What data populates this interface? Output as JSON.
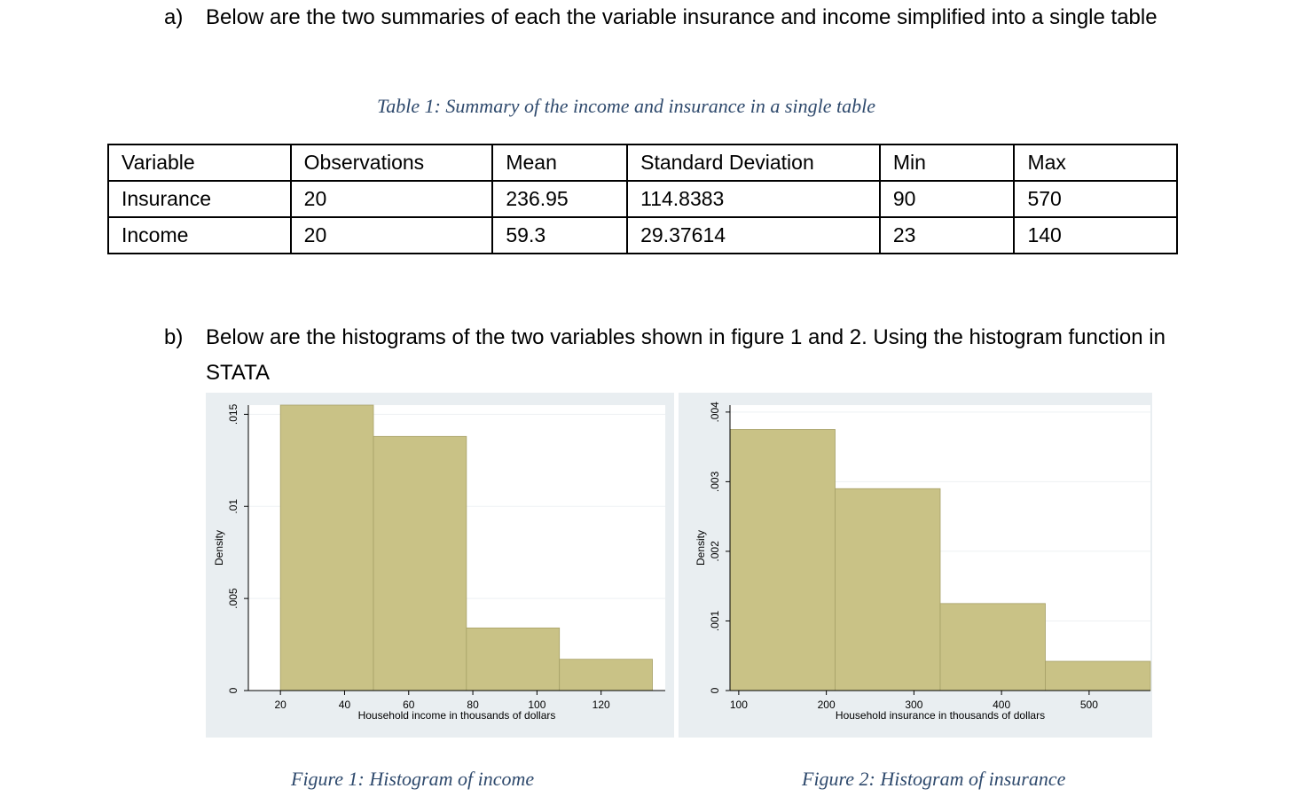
{
  "section_a": {
    "label": "a)",
    "text": "Below are the two summaries of each the variable insurance and income simplified into a single table"
  },
  "table_caption": "Table 1: Summary of the income and insurance in a single table",
  "summary_table": {
    "headers": [
      "Variable",
      "Observations",
      "Mean",
      "Standard Deviation",
      "Min",
      "Max"
    ],
    "rows": [
      [
        "Insurance",
        "20",
        "236.95",
        "114.8383",
        "90",
        "570"
      ],
      [
        "Income",
        "20",
        "59.3",
        "29.37614",
        "23",
        "140"
      ]
    ]
  },
  "section_b": {
    "label": "b)",
    "text": "Below are the histograms of the two variables shown in figure 1 and 2. Using the histogram function in STATA"
  },
  "figure1_caption": "Figure 1: Histogram of income",
  "figure2_caption": "Figure 2: Histogram of insurance",
  "chart_data": [
    {
      "type": "bar",
      "title": "",
      "xlabel": "Household income in thousands of dollars",
      "ylabel": "Density",
      "xlim": [
        10,
        140
      ],
      "ylim": [
        0,
        0.0155
      ],
      "xticks": [
        "20",
        "40",
        "60",
        "80",
        "100",
        "120"
      ],
      "xtick_values": [
        20,
        40,
        60,
        80,
        100,
        120
      ],
      "yticks": [
        "0",
        ".005",
        ".01",
        ".015"
      ],
      "ytick_values": [
        0,
        0.005,
        0.01,
        0.015
      ],
      "bins": [
        {
          "x0": 20,
          "x1": 49,
          "density": 0.0155
        },
        {
          "x0": 49,
          "x1": 78,
          "density": 0.0138
        },
        {
          "x0": 78,
          "x1": 107,
          "density": 0.0034
        },
        {
          "x0": 107,
          "x1": 136,
          "density": 0.0017
        }
      ],
      "bar_color": "#c9c286",
      "grid": true
    },
    {
      "type": "bar",
      "title": "",
      "xlabel": "Household insurance in thousands of dollars",
      "ylabel": "Density",
      "xlim": [
        90,
        570
      ],
      "ylim": [
        0,
        0.0041
      ],
      "xticks": [
        "100",
        "200",
        "300",
        "400",
        "500"
      ],
      "xtick_values": [
        100,
        200,
        300,
        400,
        500
      ],
      "yticks": [
        "0",
        ".001",
        ".002",
        ".003",
        ".004"
      ],
      "ytick_values": [
        0,
        0.001,
        0.002,
        0.003,
        0.004
      ],
      "bins": [
        {
          "x0": 90,
          "x1": 210,
          "density": 0.00375
        },
        {
          "x0": 210,
          "x1": 330,
          "density": 0.0029
        },
        {
          "x0": 330,
          "x1": 450,
          "density": 0.00125
        },
        {
          "x0": 450,
          "x1": 570,
          "density": 0.00042
        }
      ],
      "bar_color": "#c9c286",
      "grid": true
    }
  ]
}
